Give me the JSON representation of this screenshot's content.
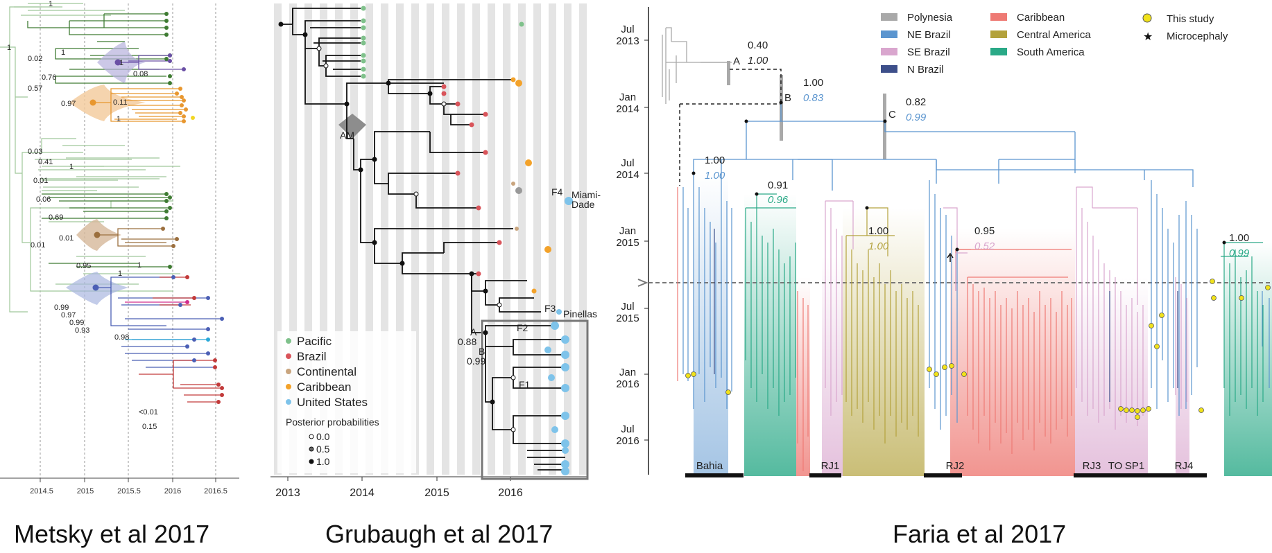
{
  "captions": [
    "Metsky et al 2017",
    "Grubaugh et al 2017",
    "Faria et al 2017"
  ],
  "metsky": {
    "x_ticks": [
      "2014.5",
      "2015",
      "2015.5",
      "2016",
      "2016.5"
    ],
    "support_values": [
      "1",
      "1",
      "0.02",
      "1",
      "0.76",
      "1",
      "0.08",
      "0.57",
      "0.97",
      "0.11",
      "1",
      "0.03",
      "0.41",
      "1",
      "0.01",
      "0.06",
      "0.69",
      "0.01",
      "0.01",
      "0.95",
      "1",
      "1",
      "0.99",
      "0.97",
      "0.99",
      "0.93",
      "0.98",
      "<0.01",
      "0.15"
    ]
  },
  "grubaugh": {
    "x_ticks": [
      "2013",
      "2014",
      "2015",
      "2016"
    ],
    "node_labels": [
      "AM",
      "F4",
      "Miami-",
      "Dade",
      "F3",
      "Pinellas",
      "F2",
      "F1",
      "A",
      "0.88",
      "B",
      "0.99"
    ],
    "legend": [
      {
        "label": "Pacific",
        "color": "#7fc18b"
      },
      {
        "label": "Brazil",
        "color": "#d9545a"
      },
      {
        "label": "Continental",
        "color": "#c9a57e"
      },
      {
        "label": "Caribbean",
        "color": "#f3a22a"
      },
      {
        "label": "United States",
        "color": "#7ec3ea"
      }
    ],
    "pp_title": "Posterior probabilities",
    "pp_levels": [
      "0.0",
      "0.5",
      "1.0"
    ]
  },
  "faria": {
    "y_ticks": [
      [
        "Jul",
        "2013"
      ],
      [
        "Jan",
        "2014"
      ],
      [
        "Jul",
        "2014"
      ],
      [
        "Jan",
        "2015"
      ],
      [
        "Jul",
        "2015"
      ],
      [
        "Jan",
        "2016"
      ],
      [
        "Jul",
        "2016"
      ]
    ],
    "legend": [
      {
        "label": "Polynesia",
        "color": "#a9a9a9"
      },
      {
        "label": "NE Brazil",
        "color": "#5b95cf"
      },
      {
        "label": "SE Brazil",
        "color": "#d9a6ce"
      },
      {
        "label": "N Brazil",
        "color": "#3d4f8a"
      },
      {
        "label": "Caribbean",
        "color": "#ee7a74"
      },
      {
        "label": "Central America",
        "color": "#b3a23c"
      },
      {
        "label": "South America",
        "color": "#2aa987"
      },
      {
        "label": "This study",
        "color": "#f1e21b"
      },
      {
        "label": "Microcephaly",
        "color": "#111111"
      }
    ],
    "nodes": [
      {
        "name": "A",
        "p1": "0.40",
        "p2": "1.00"
      },
      {
        "name": "B",
        "p1": "1.00",
        "p2": "0.83"
      },
      {
        "name": "C",
        "p1": "0.82",
        "p2": "0.99"
      }
    ],
    "clade_supports": [
      {
        "p1": "1.00",
        "p2": "1.00"
      },
      {
        "p1": "0.91",
        "p2": "0.96"
      },
      {
        "p1": "1.00",
        "p2": "1.00"
      },
      {
        "p1": "0.95",
        "p2": "0.52"
      },
      {
        "p1": "1.00",
        "p2": "0.99"
      }
    ],
    "regions": [
      "Bahia",
      "RJ1",
      "RJ2",
      "RJ3",
      "TO",
      "SP1",
      "RJ4"
    ]
  }
}
